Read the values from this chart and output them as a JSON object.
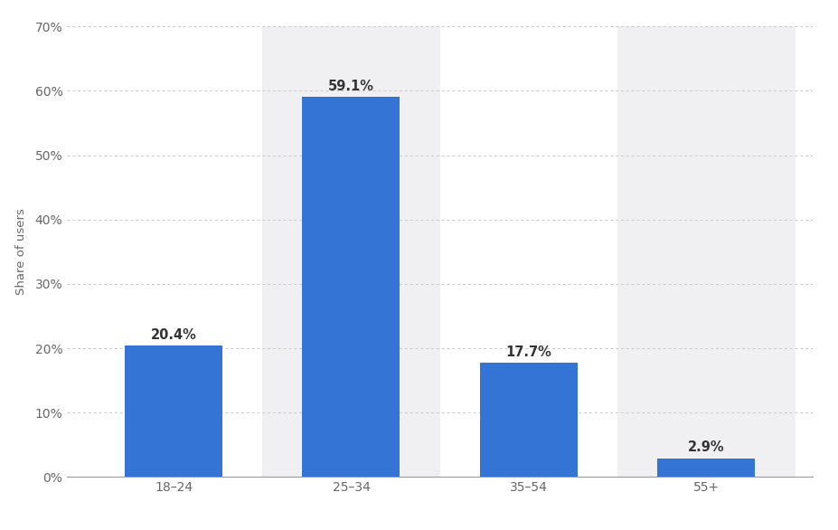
{
  "categories": [
    "18–24",
    "25–34",
    "35–54",
    "55+"
  ],
  "values": [
    20.4,
    59.1,
    17.7,
    2.9
  ],
  "bar_color": "#3374d4",
  "bar_labels": [
    "20.4%",
    "59.1%",
    "17.7%",
    "2.9%"
  ],
  "ylabel": "Share of users",
  "yticks": [
    0,
    10,
    20,
    30,
    40,
    50,
    60,
    70
  ],
  "ytick_labels": [
    "0%",
    "10%",
    "20%",
    "30%",
    "40%",
    "50%",
    "60%",
    "70%"
  ],
  "ylim": [
    0,
    70
  ],
  "fig_bg_color": "#ffffff",
  "plot_bg_color": "#ffffff",
  "shaded_col_color": "#f0f0f2",
  "grid_color": "#c8c8c8",
  "bar_label_fontsize": 10.5,
  "axis_label_fontsize": 9.5,
  "tick_label_fontsize": 10,
  "bar_width": 0.55,
  "shaded_columns": [
    1,
    3
  ]
}
